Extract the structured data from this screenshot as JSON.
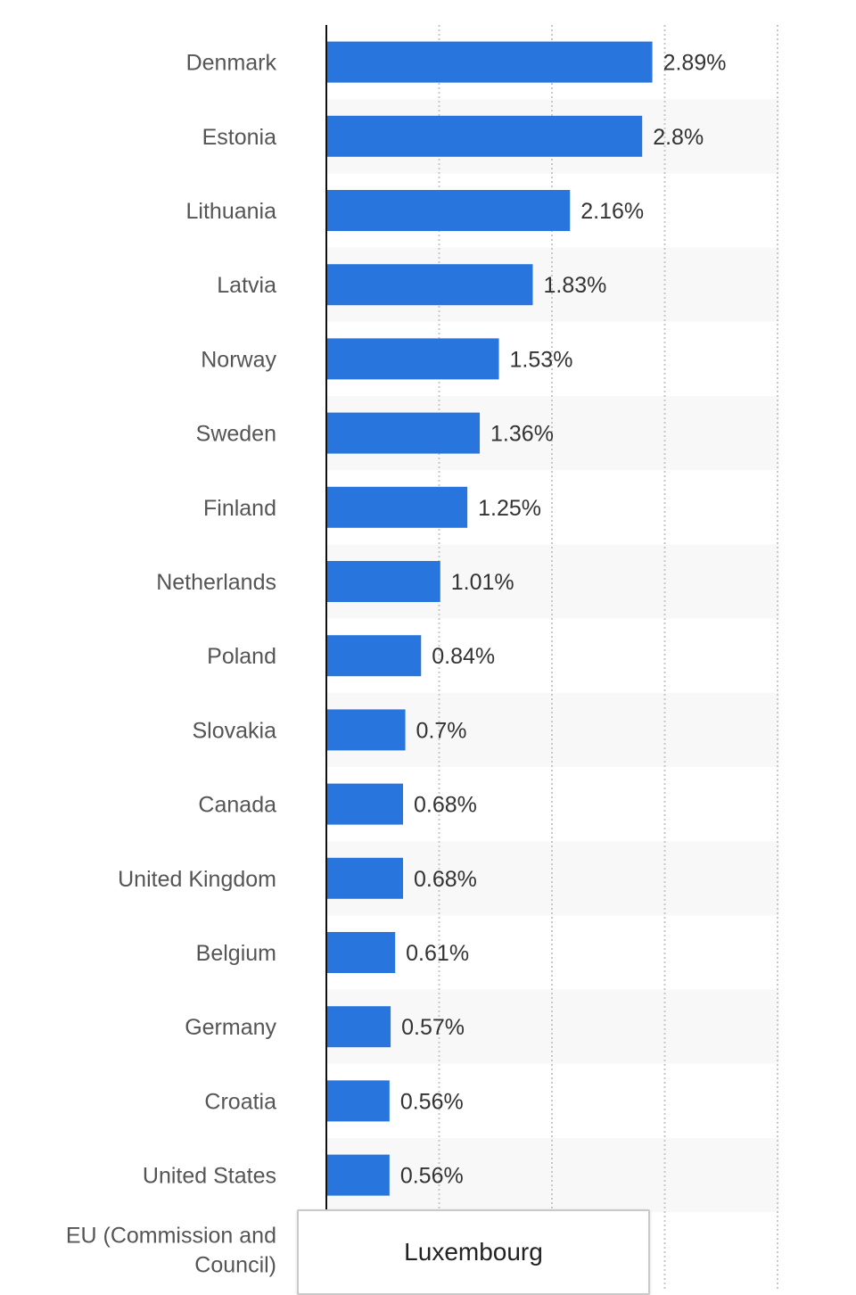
{
  "chart_data": {
    "type": "bar",
    "orientation": "horizontal",
    "categories": [
      "Denmark",
      "Estonia",
      "Lithuania",
      "Latvia",
      "Norway",
      "Sweden",
      "Finland",
      "Netherlands",
      "Poland",
      "Slovakia",
      "Canada",
      "United Kingdom",
      "Belgium",
      "Germany",
      "Croatia",
      "United States",
      "EU (Commission and Council)"
    ],
    "category_lines": [
      [
        "Denmark"
      ],
      [
        "Estonia"
      ],
      [
        "Lithuania"
      ],
      [
        "Latvia"
      ],
      [
        "Norway"
      ],
      [
        "Sweden"
      ],
      [
        "Finland"
      ],
      [
        "Netherlands"
      ],
      [
        "Poland"
      ],
      [
        "Slovakia"
      ],
      [
        "Canada"
      ],
      [
        "United Kingdom"
      ],
      [
        "Belgium"
      ],
      [
        "Germany"
      ],
      [
        "Croatia"
      ],
      [
        "United States"
      ],
      [
        "EU (Commission and",
        "Council)"
      ]
    ],
    "values": [
      2.89,
      2.8,
      2.16,
      1.83,
      1.53,
      1.36,
      1.25,
      1.01,
      0.84,
      0.7,
      0.68,
      0.68,
      0.61,
      0.57,
      0.56,
      0.56,
      null
    ],
    "value_labels": [
      "2.89%",
      "2.8%",
      "2.16%",
      "1.83%",
      "1.53%",
      "1.36%",
      "1.25%",
      "1.01%",
      "0.84%",
      "0.7%",
      "0.68%",
      "0.68%",
      "0.61%",
      "0.57%",
      "0.56%",
      "0.56%",
      ""
    ],
    "xlim": [
      0,
      4
    ],
    "gridlines": [
      1,
      2,
      3,
      4
    ],
    "bar_color": "#2876dd",
    "title": "",
    "xlabel": "",
    "ylabel": ""
  },
  "tooltip": {
    "title": "Luxembourg"
  }
}
